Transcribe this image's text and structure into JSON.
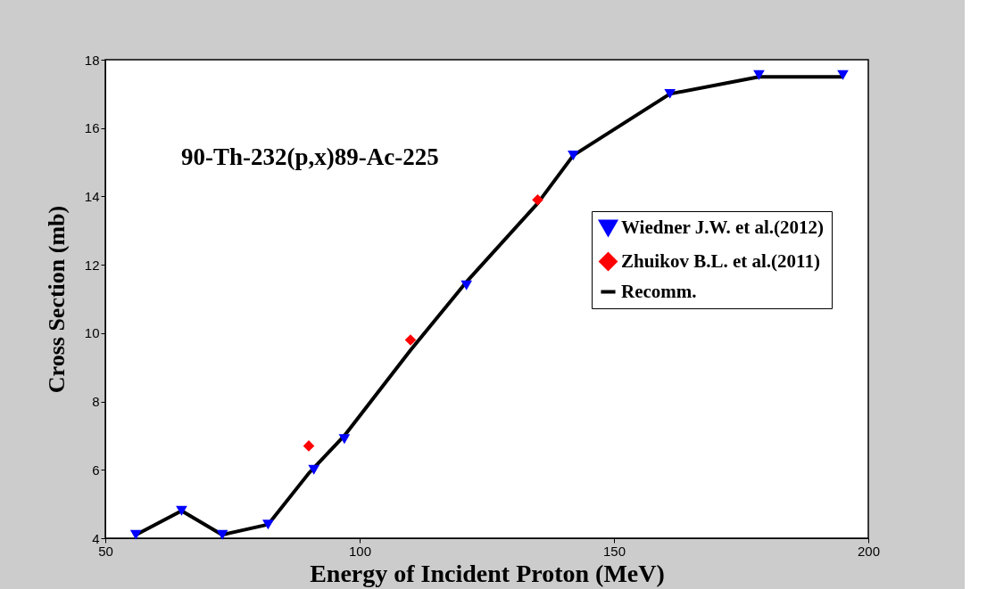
{
  "chart_data": {
    "type": "scatter",
    "xlabel": "Energy of Incident Proton (MeV)",
    "ylabel": "Cross Section (mb)",
    "annotations": [
      "90-Th-232(p,x)89-Ac-225"
    ],
    "xlim": [
      50,
      200
    ],
    "xticks": [
      50,
      100,
      150,
      200
    ],
    "ylim": [
      4,
      18
    ],
    "yticks": [
      4,
      6,
      8,
      10,
      12,
      14,
      16,
      18
    ],
    "grid": false,
    "legend": "right",
    "series": [
      {
        "name": "Wiedner J.W. et al.(2012)",
        "marker": "triangle",
        "color": "#0000ff",
        "x": [
          56,
          65,
          73,
          82,
          91,
          97,
          121,
          142,
          161,
          178.5,
          195
        ],
        "values": [
          4.1,
          4.8,
          4.1,
          4.4,
          6.0,
          6.9,
          11.4,
          15.2,
          17.0,
          17.55,
          17.55
        ]
      },
      {
        "name": "Zhuikov B.L. et al.(2011)",
        "marker": "diamond",
        "color": "#ff0000",
        "x": [
          90,
          110,
          135
        ],
        "values": [
          6.7,
          9.8,
          13.9
        ]
      },
      {
        "name": "Recomm.",
        "type": "line",
        "marker": "none",
        "line_style": "solid",
        "color": "#000000",
        "x": [
          56,
          65,
          73,
          82,
          90,
          97,
          110,
          121,
          135,
          142,
          161,
          178.5,
          195
        ],
        "values": [
          4.1,
          4.8,
          4.1,
          4.4,
          5.9,
          7.0,
          9.5,
          11.5,
          13.8,
          15.2,
          17.0,
          17.5,
          17.5
        ]
      }
    ]
  }
}
